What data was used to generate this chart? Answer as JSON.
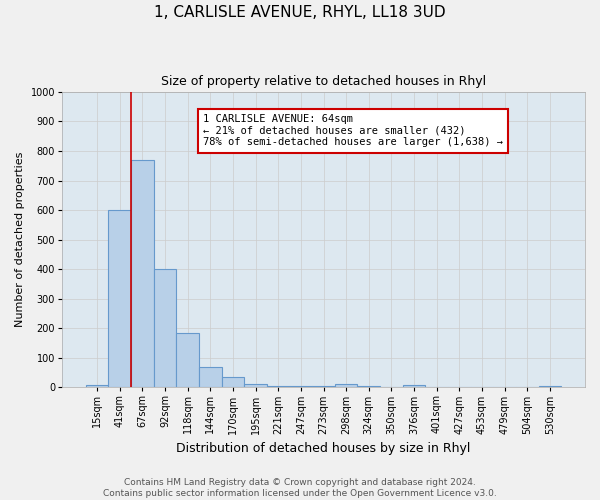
{
  "title": "1, CARLISLE AVENUE, RHYL, LL18 3UD",
  "subtitle": "Size of property relative to detached houses in Rhyl",
  "xlabel": "Distribution of detached houses by size in Rhyl",
  "ylabel": "Number of detached properties",
  "categories": [
    "15sqm",
    "41sqm",
    "67sqm",
    "92sqm",
    "118sqm",
    "144sqm",
    "170sqm",
    "195sqm",
    "221sqm",
    "247sqm",
    "273sqm",
    "298sqm",
    "324sqm",
    "350sqm",
    "376sqm",
    "401sqm",
    "427sqm",
    "453sqm",
    "479sqm",
    "504sqm",
    "530sqm"
  ],
  "values": [
    8,
    600,
    770,
    400,
    185,
    70,
    35,
    10,
    5,
    5,
    5,
    10,
    5,
    2,
    8,
    2,
    0,
    0,
    2,
    0,
    5
  ],
  "bar_color": "#b8d0e8",
  "bar_edge_color": "#6699cc",
  "bar_edge_width": 0.8,
  "vline_color": "#cc0000",
  "vline_x_index": 2,
  "annotation_text": "1 CARLISLE AVENUE: 64sqm\n← 21% of detached houses are smaller (432)\n78% of semi-detached houses are larger (1,638) →",
  "annotation_box_facecolor": "#ffffff",
  "annotation_box_edgecolor": "#cc0000",
  "annotation_fontsize": 7.5,
  "ylim": [
    0,
    1000
  ],
  "yticks": [
    0,
    100,
    200,
    300,
    400,
    500,
    600,
    700,
    800,
    900,
    1000
  ],
  "grid_color": "#cccccc",
  "plot_bg_color": "#dde8f0",
  "fig_bg_color": "#f0f0f0",
  "title_fontsize": 11,
  "subtitle_fontsize": 9,
  "xlabel_fontsize": 9,
  "ylabel_fontsize": 8,
  "tick_fontsize": 7,
  "footer_fontsize": 6.5,
  "footer_text": "Contains HM Land Registry data © Crown copyright and database right 2024.\nContains public sector information licensed under the Open Government Licence v3.0."
}
